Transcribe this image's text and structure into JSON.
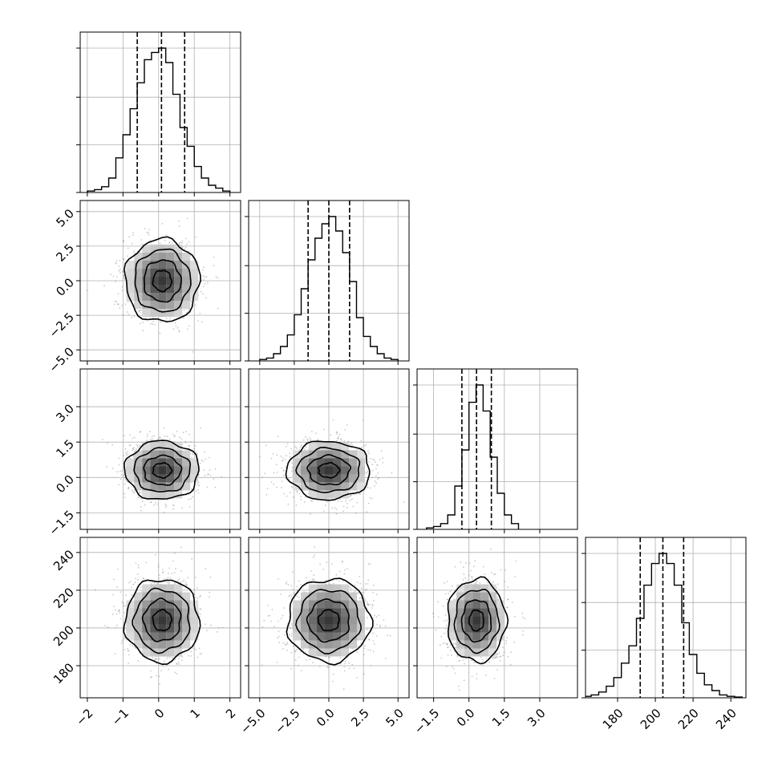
{
  "chart_data": {
    "type": "corner",
    "n_params": 4,
    "colors": {
      "line": "#000000",
      "grid": "#b0b0b0",
      "scatter": "#888888",
      "background": "#ffffff"
    },
    "grid": true,
    "params": [
      {
        "range": [
          -2.2,
          2.3
        ],
        "ticks": [
          -2,
          -1,
          0,
          1,
          2
        ],
        "tick_labels": [
          "−2",
          "−1",
          "0",
          "1",
          "2"
        ],
        "quantiles": [
          -0.6,
          0.08,
          0.73
        ],
        "hist": {
          "edges": [
            -2.0,
            -1.8,
            -1.6,
            -1.4,
            -1.2,
            -1.0,
            -0.8,
            -0.6,
            -0.4,
            -0.2,
            0.0,
            0.2,
            0.4,
            0.6,
            0.8,
            1.0,
            1.2,
            1.4,
            1.6,
            1.8,
            2.0
          ],
          "counts": [
            0.01,
            0.02,
            0.04,
            0.1,
            0.24,
            0.4,
            0.58,
            0.76,
            0.92,
            0.97,
            1.0,
            0.9,
            0.68,
            0.45,
            0.32,
            0.18,
            0.1,
            0.05,
            0.03,
            0.01
          ]
        }
      },
      {
        "range": [
          -5.8,
          5.8
        ],
        "ticks": [
          -5.0,
          -2.5,
          0.0,
          2.5,
          5.0
        ],
        "tick_labels": [
          "−5.0",
          "−2.5",
          "0.0",
          "2.5",
          "5.0"
        ],
        "quantiles": [
          -1.5,
          0.0,
          1.5
        ],
        "hist": {
          "edges": [
            -5.0,
            -4.5,
            -4.0,
            -3.5,
            -3.0,
            -2.5,
            -2.0,
            -1.5,
            -1.0,
            -0.5,
            0.0,
            0.5,
            1.0,
            1.5,
            2.0,
            2.5,
            3.0,
            3.5,
            4.0,
            4.5,
            5.0
          ],
          "counts": [
            0.01,
            0.02,
            0.05,
            0.1,
            0.18,
            0.32,
            0.5,
            0.7,
            0.85,
            0.95,
            1.0,
            0.9,
            0.75,
            0.55,
            0.3,
            0.17,
            0.1,
            0.05,
            0.02,
            0.01
          ]
        }
      },
      {
        "range": [
          -2.2,
          4.6
        ],
        "ticks": [
          -1.5,
          0.0,
          1.5,
          3.0
        ],
        "tick_labels": [
          "−1.5",
          "0.0",
          "1.5",
          "3.0"
        ],
        "quantiles": [
          -0.3,
          0.32,
          0.95
        ],
        "hist": {
          "edges": [
            -1.8,
            -1.5,
            -1.2,
            -0.9,
            -0.6,
            -0.3,
            0.0,
            0.3,
            0.6,
            0.9,
            1.2,
            1.5,
            1.8,
            2.1
          ],
          "counts": [
            0.01,
            0.02,
            0.04,
            0.1,
            0.3,
            0.55,
            0.88,
            1.0,
            0.82,
            0.5,
            0.25,
            0.1,
            0.04
          ]
        }
      },
      {
        "range": [
          163,
          248
        ],
        "ticks": [
          180,
          200,
          220,
          240
        ],
        "tick_labels": [
          "180",
          "200",
          "220",
          "240"
        ],
        "quantiles": [
          192,
          204,
          215
        ],
        "hist": {
          "edges": [
            162,
            166,
            170,
            174,
            178,
            182,
            186,
            190,
            194,
            198,
            202,
            206,
            210,
            214,
            218,
            222,
            226,
            230,
            234,
            238,
            242,
            246
          ],
          "counts": [
            0.01,
            0.02,
            0.04,
            0.08,
            0.14,
            0.24,
            0.36,
            0.55,
            0.78,
            0.93,
            1.0,
            0.93,
            0.78,
            0.52,
            0.3,
            0.17,
            0.09,
            0.05,
            0.02,
            0.01,
            0.005
          ]
        }
      }
    ],
    "pairs": [
      {
        "x": 0,
        "y": 1,
        "center": [
          0.1,
          0.0
        ],
        "sigma": [
          0.52,
          1.5
        ]
      },
      {
        "x": 0,
        "y": 2,
        "center": [
          0.1,
          0.3
        ],
        "sigma": [
          0.52,
          0.62
        ]
      },
      {
        "x": 1,
        "y": 2,
        "center": [
          0.0,
          0.3
        ],
        "sigma": [
          1.5,
          0.62
        ]
      },
      {
        "x": 0,
        "y": 3,
        "center": [
          0.1,
          204
        ],
        "sigma": [
          0.52,
          11
        ]
      },
      {
        "x": 1,
        "y": 3,
        "center": [
          0.0,
          204
        ],
        "sigma": [
          1.5,
          11
        ]
      },
      {
        "x": 2,
        "y": 3,
        "center": [
          0.32,
          204
        ],
        "sigma": [
          0.62,
          11
        ]
      }
    ]
  }
}
